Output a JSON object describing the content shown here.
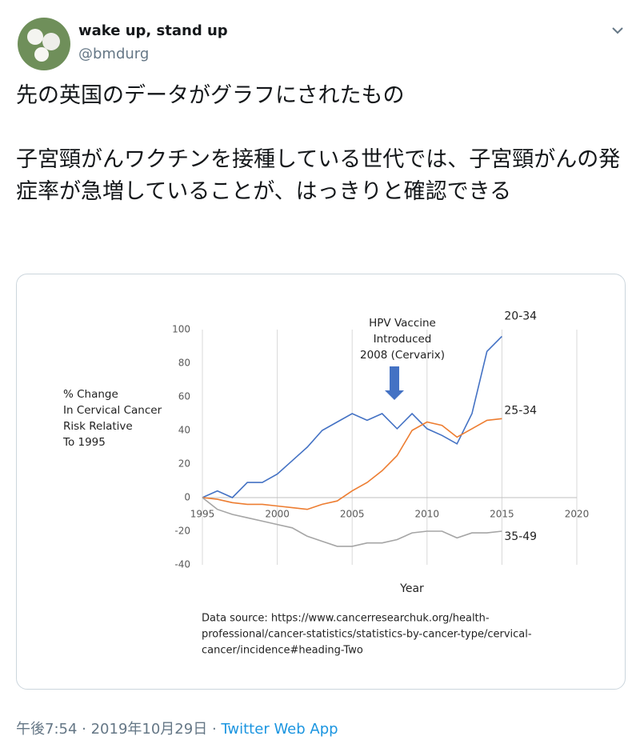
{
  "header": {
    "name": "wake up, stand up",
    "handle": "@bmdurg"
  },
  "tweet": {
    "paragraphs": [
      "先の英国のデータがグラフにされたもの",
      "子宮頸がんワクチンを接種している世代では、子宮頸がんの発症率が急増していることが、はっきりと確認できる"
    ]
  },
  "chart_data": {
    "type": "line",
    "ylabel_lines": [
      "% Change",
      "In Cervical Cancer",
      "Risk Relative",
      "To 1995"
    ],
    "xlabel": "Year",
    "annotation_lines": [
      "HPV Vaccine",
      "Introduced",
      "2008 (Cervarix)"
    ],
    "source_lines": [
      "Data source: https://www.cancerresearchuk.org/health-",
      "professional/cancer-statistics/statistics-by-cancer-type/cervical-",
      "cancer/incidence#heading-Two"
    ],
    "x": [
      1995,
      1996,
      1997,
      1998,
      1999,
      2000,
      2001,
      2002,
      2003,
      2004,
      2005,
      2006,
      2007,
      2008,
      2009,
      2010,
      2011,
      2012,
      2013,
      2014,
      2015
    ],
    "series": [
      {
        "name": "20-34",
        "color": "#4472c4",
        "values": [
          0,
          4,
          0,
          9,
          9,
          14,
          22,
          30,
          40,
          45,
          50,
          46,
          50,
          41,
          50,
          41,
          37,
          32,
          50,
          87,
          96
        ]
      },
      {
        "name": "25-34",
        "color": "#ed7d31",
        "values": [
          0,
          -1,
          -3,
          -4,
          -4,
          -5,
          -6,
          -7,
          -4,
          -2,
          4,
          9,
          16,
          25,
          40,
          45,
          43,
          36,
          41,
          46,
          47
        ]
      },
      {
        "name": "35-49",
        "color": "#a5a5a5",
        "values": [
          0,
          -7,
          -10,
          -12,
          -14,
          -16,
          -18,
          -23,
          -26,
          -29,
          -29,
          -27,
          -27,
          -25,
          -21,
          -20,
          -20,
          -24,
          -21,
          -21,
          -20
        ]
      }
    ],
    "xlim": [
      1995,
      2020
    ],
    "xticks": [
      1995,
      2000,
      2005,
      2010,
      2015,
      2020
    ],
    "ylim": [
      -40,
      100
    ],
    "yticks": [
      -40,
      -20,
      0,
      20,
      40,
      60,
      80,
      100
    ],
    "grid": "x"
  },
  "footer": {
    "time": "午後7:54",
    "date": "2019年10月29日",
    "source": "Twitter Web App"
  }
}
